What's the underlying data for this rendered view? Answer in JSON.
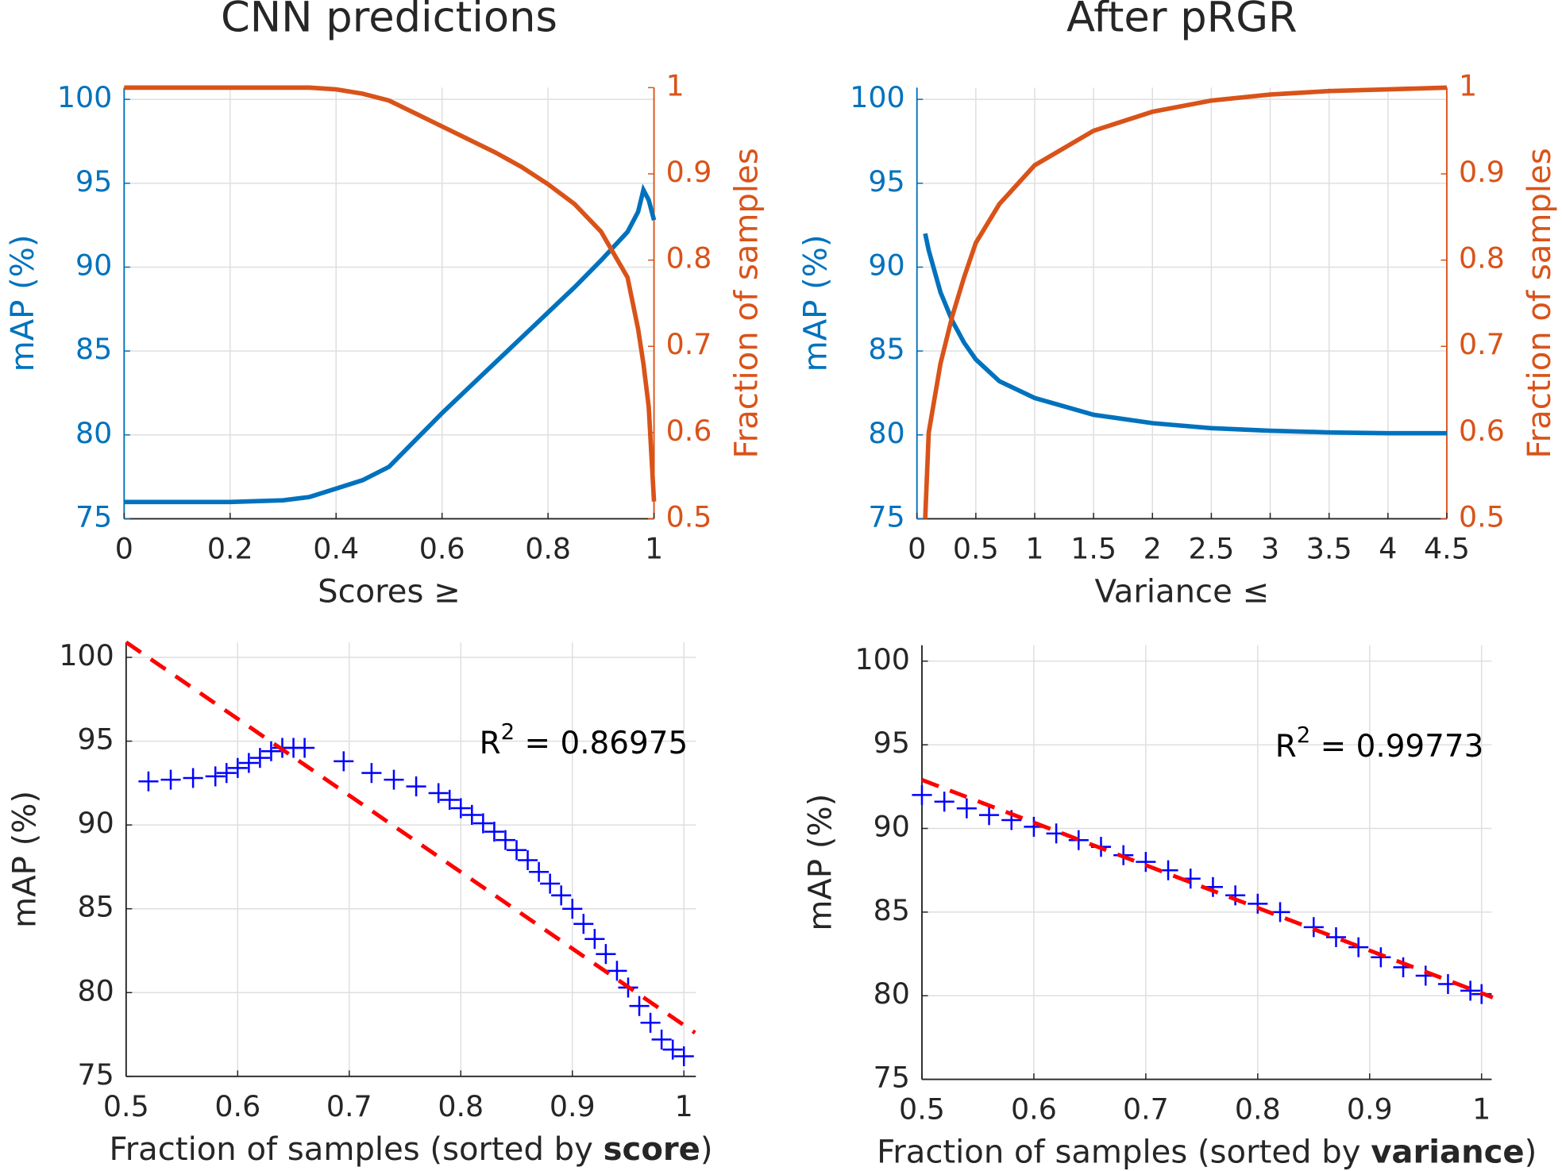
{
  "chart_data": [
    {
      "type": "line",
      "title": "CNN predictions",
      "xlabel": "Scores ≥",
      "ylabel": "mAP (%)",
      "y2label": "Fraction of samples",
      "x": [
        0,
        0.1,
        0.2,
        0.3,
        0.35,
        0.4,
        0.45,
        0.5,
        0.55,
        0.6,
        0.65,
        0.7,
        0.75,
        0.8,
        0.85,
        0.9,
        0.95,
        0.97,
        0.98,
        0.99,
        1
      ],
      "series": [
        {
          "color": "#0072bd",
          "axis": "y",
          "values": [
            76,
            76,
            76,
            76.1,
            76.3,
            76.8,
            77.3,
            78.1,
            79.7,
            81.3,
            82.8,
            84.3,
            85.8,
            87.3,
            88.8,
            90.4,
            92.1,
            93.3,
            94.6,
            94.0,
            92.8
          ]
        },
        {
          "color": "#d95319",
          "axis": "y2",
          "values": [
            1,
            1,
            1,
            1,
            1,
            0.998,
            0.993,
            0.985,
            0.97,
            0.955,
            0.94,
            0.925,
            0.908,
            0.888,
            0.865,
            0.833,
            0.78,
            0.72,
            0.68,
            0.63,
            0.52
          ]
        }
      ],
      "xlim": [
        0,
        1
      ],
      "xticks": [
        0,
        0.2,
        0.4,
        0.6,
        0.8,
        1
      ],
      "ylim": [
        75,
        100.7
      ],
      "yticks": [
        75,
        80,
        85,
        90,
        95,
        100
      ],
      "y2lim": [
        0.5,
        1
      ],
      "y2ticks": [
        0.5,
        0.6,
        0.7,
        0.8,
        0.9,
        1
      ],
      "grid": true
    },
    {
      "type": "line",
      "title": "After pRGR",
      "xlabel": "Variance ≤",
      "ylabel": "mAP (%)",
      "y2label": "Fraction of samples",
      "x": [
        0.07,
        0.1,
        0.2,
        0.3,
        0.4,
        0.5,
        0.7,
        1,
        1.5,
        2,
        2.5,
        3,
        3.5,
        4,
        4.5
      ],
      "series": [
        {
          "color": "#0072bd",
          "axis": "y",
          "values": [
            92,
            91,
            88.5,
            86.8,
            85.5,
            84.5,
            83.2,
            82.2,
            81.2,
            80.7,
            80.4,
            80.25,
            80.15,
            80.1,
            80.1
          ]
        },
        {
          "color": "#d95319",
          "axis": "y2",
          "values": [
            0.5,
            0.6,
            0.68,
            0.735,
            0.78,
            0.82,
            0.865,
            0.91,
            0.95,
            0.972,
            0.985,
            0.992,
            0.996,
            0.998,
            1
          ]
        }
      ],
      "xlim": [
        0,
        4.5
      ],
      "xticks": [
        0,
        0.5,
        1,
        1.5,
        2,
        2.5,
        3,
        3.5,
        4,
        4.5
      ],
      "ylim": [
        75,
        100.7
      ],
      "yticks": [
        75,
        80,
        85,
        90,
        95,
        100
      ],
      "y2lim": [
        0.5,
        1
      ],
      "y2ticks": [
        0.5,
        0.6,
        0.7,
        0.8,
        0.9,
        1
      ],
      "grid": true
    },
    {
      "type": "scatter",
      "xlabel": [
        "Fraction of samples (sorted by ",
        "score",
        ")"
      ],
      "xlabel_bold_part": 1,
      "ylabel": "mAP (%)",
      "annotation": {
        "base": "R",
        "superscript": "2",
        "text": " = 0.86975"
      },
      "series": [
        {
          "color": "#0000ff",
          "marker": "+",
          "x": [
            0.52,
            0.54,
            0.56,
            0.58,
            0.59,
            0.6,
            0.61,
            0.62,
            0.63,
            0.64,
            0.65,
            0.66,
            0.695,
            0.72,
            0.74,
            0.76,
            0.78,
            0.79,
            0.8,
            0.81,
            0.82,
            0.83,
            0.84,
            0.85,
            0.86,
            0.87,
            0.88,
            0.89,
            0.9,
            0.91,
            0.92,
            0.93,
            0.94,
            0.95,
            0.96,
            0.97,
            0.98,
            0.99,
            1
          ],
          "values": [
            92.6,
            92.7,
            92.8,
            92.9,
            93.1,
            93.4,
            93.7,
            94,
            94.4,
            94.6,
            94.6,
            94.6,
            93.8,
            93.1,
            92.7,
            92.3,
            91.9,
            91.5,
            91,
            90.6,
            90.1,
            89.6,
            89.1,
            88.5,
            87.9,
            87.2,
            86.5,
            85.8,
            85,
            84.1,
            83.2,
            82.3,
            81.3,
            80.3,
            79.2,
            78.2,
            77.2,
            76.6,
            76.2
          ]
        },
        {
          "color": "#ff0000",
          "linestyle": "dashed",
          "x": [
            0.5,
            1.01
          ],
          "values": [
            100.9,
            77.6
          ]
        }
      ],
      "xlim": [
        0.5,
        1.0107
      ],
      "xticks": [
        0.5,
        0.6,
        0.7,
        0.8,
        0.9,
        1
      ],
      "ylim": [
        75,
        100.9
      ],
      "yticks": [
        75,
        80,
        85,
        90,
        95,
        100
      ],
      "grid": true
    },
    {
      "type": "scatter",
      "xlabel": [
        "Fraction of samples (sorted by ",
        "variance",
        ")"
      ],
      "xlabel_bold_part": 1,
      "ylabel": "mAP (%)",
      "annotation": {
        "base": "R",
        "superscript": "2",
        "text": " = 0.99773"
      },
      "series": [
        {
          "color": "#0000ff",
          "marker": "+",
          "x": [
            0.5,
            0.52,
            0.54,
            0.56,
            0.58,
            0.6,
            0.62,
            0.64,
            0.66,
            0.68,
            0.7,
            0.72,
            0.74,
            0.76,
            0.78,
            0.8,
            0.82,
            0.85,
            0.87,
            0.89,
            0.91,
            0.93,
            0.95,
            0.97,
            0.99,
            1
          ],
          "values": [
            92,
            91.6,
            91.2,
            90.8,
            90.5,
            90.1,
            89.7,
            89.3,
            88.9,
            88.4,
            88,
            87.5,
            87,
            86.5,
            86,
            85.5,
            85,
            84.1,
            83.5,
            82.9,
            82.3,
            81.7,
            81.2,
            80.7,
            80.3,
            80.1
          ]
        },
        {
          "color": "#ff0000",
          "linestyle": "dashed",
          "x": [
            0.5,
            1.01
          ],
          "values": [
            92.9,
            79.9
          ]
        }
      ],
      "xlim": [
        0.5,
        1.009
      ],
      "xticks": [
        0.5,
        0.6,
        0.7,
        0.8,
        0.9,
        1
      ],
      "ylim": [
        75,
        100.95
      ],
      "yticks": [
        75,
        80,
        85,
        90,
        95,
        100
      ],
      "grid": true
    }
  ]
}
